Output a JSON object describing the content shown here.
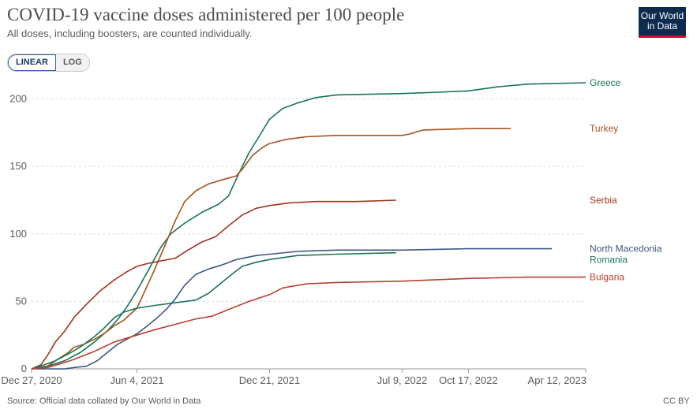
{
  "header": {
    "title": "COVID-19 vaccine doses administered per 100 people",
    "subtitle": "All doses, including boosters, are counted individually.",
    "logo_line1": "Our World",
    "logo_line2": "in Data"
  },
  "controls": {
    "linear_label": "LINEAR",
    "log_label": "LOG",
    "active": "linear"
  },
  "footer": {
    "source": "Source: Official data collated by Our World in Data",
    "license": "CC BY"
  },
  "colors": {
    "Greece": "#18745a",
    "Turkey": "#a5531c",
    "Serbia": "#a3321c",
    "North Macedonia": "#3d5786",
    "Romania": "#18745a",
    "Bulgaria": "#b9412f",
    "grid": "#dddddd",
    "axis_text": "#5b5b5b"
  },
  "chart_data": {
    "type": "line",
    "title": "COVID-19 vaccine doses administered per 100 people",
    "subtitle": "All doses, including boosters, are counted individually.",
    "xlabel": "",
    "ylabel": "",
    "x_range": [
      "2020-12-27",
      "2023-04-12"
    ],
    "ylim": [
      0,
      212
    ],
    "y_ticks": [
      0,
      50,
      100,
      150,
      200
    ],
    "x_ticks": [
      "2020-12-27",
      "2021-06-04",
      "2021-12-21",
      "2022-07-09",
      "2022-10-17",
      "2023-04-12"
    ],
    "x_tick_labels": [
      "Dec 27, 2020",
      "Jun 4, 2021",
      "Dec 21, 2021",
      "Jul 9, 2022",
      "Oct 17, 2022",
      "Apr 12, 2023"
    ],
    "scale": "linear",
    "grid": true,
    "legend": "end-labels-right",
    "series": [
      {
        "name": "Greece",
        "points": [
          [
            "2020-12-27",
            0
          ],
          [
            "2021-01-20",
            2
          ],
          [
            "2021-02-15",
            6
          ],
          [
            "2021-03-10",
            12
          ],
          [
            "2021-04-01",
            20
          ],
          [
            "2021-04-20",
            28
          ],
          [
            "2021-05-05",
            36
          ],
          [
            "2021-05-20",
            46
          ],
          [
            "2021-06-04",
            58
          ],
          [
            "2021-06-20",
            72
          ],
          [
            "2021-07-10",
            90
          ],
          [
            "2021-07-25",
            100
          ],
          [
            "2021-08-15",
            108
          ],
          [
            "2021-09-10",
            116
          ],
          [
            "2021-10-05",
            122
          ],
          [
            "2021-10-20",
            128
          ],
          [
            "2021-11-05",
            145
          ],
          [
            "2021-11-20",
            160
          ],
          [
            "2021-12-05",
            172
          ],
          [
            "2021-12-21",
            185
          ],
          [
            "2022-01-10",
            193
          ],
          [
            "2022-02-01",
            197
          ],
          [
            "2022-03-01",
            201
          ],
          [
            "2022-04-01",
            203
          ],
          [
            "2022-07-09",
            204
          ],
          [
            "2022-09-01",
            205
          ],
          [
            "2022-10-17",
            206
          ],
          [
            "2022-12-01",
            209
          ],
          [
            "2023-01-15",
            211
          ],
          [
            "2023-04-12",
            212
          ]
        ]
      },
      {
        "name": "Turkey",
        "points": [
          [
            "2021-01-14",
            0
          ],
          [
            "2021-02-01",
            6
          ],
          [
            "2021-02-20",
            12
          ],
          [
            "2021-03-01",
            16
          ],
          [
            "2021-03-15",
            18
          ],
          [
            "2021-04-01",
            22
          ],
          [
            "2021-04-15",
            26
          ],
          [
            "2021-05-01",
            32
          ],
          [
            "2021-05-15",
            36
          ],
          [
            "2021-06-04",
            45
          ],
          [
            "2021-06-20",
            62
          ],
          [
            "2021-07-01",
            74
          ],
          [
            "2021-07-15",
            90
          ],
          [
            "2021-08-01",
            110
          ],
          [
            "2021-08-15",
            124
          ],
          [
            "2021-09-01",
            132
          ],
          [
            "2021-09-20",
            137
          ],
          [
            "2021-10-10",
            140
          ],
          [
            "2021-11-01",
            143
          ],
          [
            "2021-11-10",
            148
          ],
          [
            "2021-11-25",
            158
          ],
          [
            "2021-12-10",
            164
          ],
          [
            "2021-12-21",
            167
          ],
          [
            "2022-01-15",
            170
          ],
          [
            "2022-02-15",
            172
          ],
          [
            "2022-04-01",
            173
          ],
          [
            "2022-07-09",
            173
          ],
          [
            "2022-07-20",
            174
          ],
          [
            "2022-08-10",
            177
          ],
          [
            "2022-10-17",
            178
          ],
          [
            "2022-12-20",
            178
          ]
        ]
      },
      {
        "name": "Serbia",
        "points": [
          [
            "2020-12-27",
            0
          ],
          [
            "2021-01-10",
            3
          ],
          [
            "2021-01-20",
            10
          ],
          [
            "2021-02-01",
            20
          ],
          [
            "2021-02-15",
            28
          ],
          [
            "2021-03-01",
            38
          ],
          [
            "2021-03-20",
            48
          ],
          [
            "2021-04-10",
            58
          ],
          [
            "2021-05-01",
            66
          ],
          [
            "2021-05-20",
            72
          ],
          [
            "2021-06-04",
            76
          ],
          [
            "2021-06-20",
            78
          ],
          [
            "2021-07-10",
            80
          ],
          [
            "2021-08-01",
            82
          ],
          [
            "2021-08-20",
            88
          ],
          [
            "2021-09-10",
            94
          ],
          [
            "2021-10-01",
            98
          ],
          [
            "2021-10-20",
            106
          ],
          [
            "2021-11-10",
            114
          ],
          [
            "2021-12-01",
            119
          ],
          [
            "2021-12-21",
            121
          ],
          [
            "2022-01-20",
            123
          ],
          [
            "2022-03-01",
            124
          ],
          [
            "2022-05-01",
            124
          ],
          [
            "2022-06-30",
            125
          ]
        ]
      },
      {
        "name": "North Macedonia",
        "points": [
          [
            "2020-12-27",
            0
          ],
          [
            "2021-02-15",
            0
          ],
          [
            "2021-03-01",
            1
          ],
          [
            "2021-03-20",
            2
          ],
          [
            "2021-04-05",
            6
          ],
          [
            "2021-04-20",
            12
          ],
          [
            "2021-05-05",
            18
          ],
          [
            "2021-05-20",
            22
          ],
          [
            "2021-06-04",
            26
          ],
          [
            "2021-06-20",
            32
          ],
          [
            "2021-07-05",
            38
          ],
          [
            "2021-07-20",
            45
          ],
          [
            "2021-08-01",
            52
          ],
          [
            "2021-08-15",
            62
          ],
          [
            "2021-09-01",
            70
          ],
          [
            "2021-09-20",
            74
          ],
          [
            "2021-10-10",
            77
          ],
          [
            "2021-11-01",
            81
          ],
          [
            "2021-12-01",
            84
          ],
          [
            "2021-12-21",
            85
          ],
          [
            "2022-02-01",
            87
          ],
          [
            "2022-04-01",
            88
          ],
          [
            "2022-07-09",
            88
          ],
          [
            "2022-10-17",
            89
          ],
          [
            "2023-01-15",
            89
          ],
          [
            "2023-02-20",
            89
          ]
        ]
      },
      {
        "name": "Romania",
        "points": [
          [
            "2020-12-27",
            0
          ],
          [
            "2021-01-15",
            3
          ],
          [
            "2021-02-01",
            6
          ],
          [
            "2021-02-20",
            11
          ],
          [
            "2021-03-10",
            16
          ],
          [
            "2021-04-01",
            24
          ],
          [
            "2021-04-15",
            30
          ],
          [
            "2021-05-01",
            38
          ],
          [
            "2021-05-15",
            42
          ],
          [
            "2021-06-04",
            45
          ],
          [
            "2021-07-01",
            47
          ],
          [
            "2021-08-01",
            49
          ],
          [
            "2021-09-01",
            51
          ],
          [
            "2021-09-20",
            56
          ],
          [
            "2021-10-10",
            64
          ],
          [
            "2021-10-25",
            70
          ],
          [
            "2021-11-10",
            76
          ],
          [
            "2021-12-01",
            79
          ],
          [
            "2021-12-21",
            81
          ],
          [
            "2022-02-01",
            84
          ],
          [
            "2022-04-01",
            85
          ],
          [
            "2022-06-30",
            86
          ]
        ]
      },
      {
        "name": "Bulgaria",
        "points": [
          [
            "2020-12-27",
            0
          ],
          [
            "2021-01-20",
            1
          ],
          [
            "2021-02-10",
            4
          ],
          [
            "2021-03-01",
            7
          ],
          [
            "2021-04-01",
            13
          ],
          [
            "2021-05-01",
            20
          ],
          [
            "2021-06-04",
            25
          ],
          [
            "2021-07-01",
            29
          ],
          [
            "2021-08-01",
            33
          ],
          [
            "2021-09-01",
            37
          ],
          [
            "2021-09-25",
            39
          ],
          [
            "2021-10-20",
            44
          ],
          [
            "2021-11-20",
            50
          ],
          [
            "2021-12-21",
            55
          ],
          [
            "2022-01-10",
            60
          ],
          [
            "2022-02-15",
            63
          ],
          [
            "2022-04-01",
            64
          ],
          [
            "2022-07-09",
            65
          ],
          [
            "2022-10-17",
            67
          ],
          [
            "2023-01-15",
            68
          ],
          [
            "2023-04-12",
            68
          ]
        ]
      }
    ],
    "end_labels": [
      {
        "name": "Greece",
        "value": 212
      },
      {
        "name": "Turkey",
        "value": 178
      },
      {
        "name": "Serbia",
        "value": 125
      },
      {
        "name": "North Macedonia",
        "value": 89
      },
      {
        "name": "Romania",
        "value": 86
      },
      {
        "name": "Bulgaria",
        "value": 68
      }
    ]
  }
}
